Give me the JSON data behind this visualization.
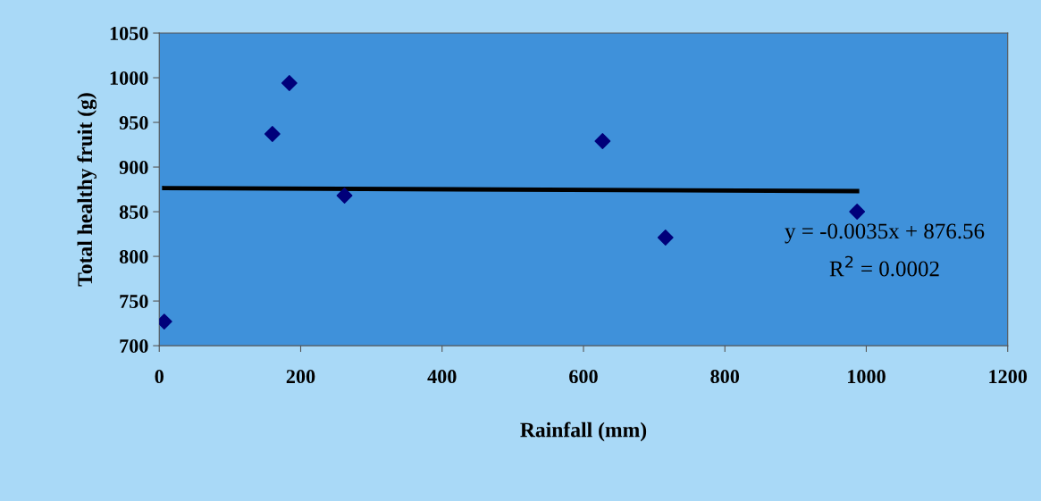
{
  "chart_data": {
    "type": "scatter",
    "xlabel": "Rainfall (mm)",
    "ylabel": "Total healthy fruit (g)",
    "xlim": [
      0,
      1200
    ],
    "xticks": [
      0,
      200,
      400,
      600,
      800,
      1000,
      1200
    ],
    "ylim": [
      700,
      1050
    ],
    "yticks": [
      700,
      750,
      800,
      850,
      900,
      950,
      1000,
      1050
    ],
    "grid": false,
    "legend": false,
    "series": [
      {
        "marker": "diamond",
        "color": "#00007a",
        "x": [
          7,
          160,
          184,
          262,
          627,
          716,
          987
        ],
        "values": [
          727,
          937,
          994,
          868,
          929,
          821,
          850
        ]
      },
      {
        "type": "line",
        "marker": "none",
        "line_style": "solid",
        "color": "#000000",
        "x": [
          7,
          987
        ],
        "values": [
          876.5,
          873.1
        ]
      }
    ],
    "annotations": [
      "y = -0.0035x + 876.56",
      "R$^{2}$ = 0.0002"
    ]
  }
}
